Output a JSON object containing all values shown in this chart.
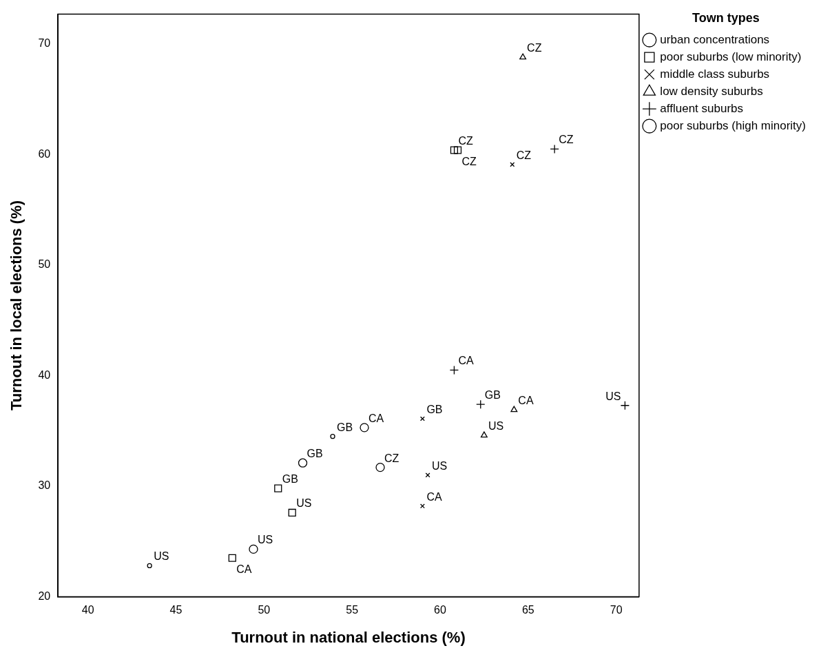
{
  "chart_data": {
    "type": "scatter",
    "xlabel": "Turnout in national elections (%)",
    "ylabel": "Turnout in local elections (%)",
    "legend_title": "Town types",
    "legend": "top right",
    "grid": false,
    "xlim": [
      38.3,
      71.3
    ],
    "xticks": [
      40,
      45,
      50,
      55,
      60,
      65,
      70
    ],
    "ylim": [
      20,
      72.7
    ],
    "yticks": [
      20,
      30,
      40,
      50,
      60,
      70
    ],
    "series": [
      {
        "name": "urban concentrations",
        "color": "#000000",
        "marker": "circle",
        "x": [
          49.4,
          52.2,
          55.7,
          56.6
        ],
        "values": [
          24.3,
          32.1,
          35.3,
          31.7
        ],
        "value_labels": [
          "US",
          "GB",
          "CA",
          "CZ"
        ]
      },
      {
        "name": "poor suburbs (low minority)",
        "color": "#000000",
        "marker": "square",
        "x": [
          48.2,
          51.6,
          50.8,
          60.8,
          61.0
        ],
        "values": [
          23.5,
          27.6,
          29.8,
          60.4,
          60.4
        ],
        "value_labels": [
          "CA",
          "US",
          "GB",
          "CZ",
          "CZ"
        ]
      },
      {
        "name": "middle class suburbs",
        "color": "#000000",
        "marker": "x",
        "x": [
          59.0,
          59.3,
          59.0,
          64.1
        ],
        "values": [
          36.1,
          31.0,
          28.2,
          59.1
        ],
        "value_labels": [
          "GB",
          "US",
          "CA",
          "CZ"
        ]
      },
      {
        "name": "low density suburbs",
        "color": "#000000",
        "marker": "triangle",
        "x": [
          64.2,
          62.5,
          64.7
        ],
        "values": [
          36.9,
          34.6,
          68.8
        ],
        "value_labels": [
          "CA",
          "US",
          "CZ"
        ]
      },
      {
        "name": "affluent suburbs",
        "color": "#000000",
        "marker": "plus",
        "x": [
          60.8,
          62.3,
          70.5,
          66.5
        ],
        "values": [
          40.5,
          37.4,
          37.3,
          60.5
        ],
        "value_labels": [
          "CA",
          "GB",
          "US",
          "CZ"
        ]
      },
      {
        "name": "poor suburbs (high minority)",
        "color": "#000000",
        "x": [
          43.5,
          53.9
        ],
        "values": [
          22.8,
          34.5
        ],
        "value_labels": [
          "US",
          "GB"
        ]
      }
    ]
  }
}
